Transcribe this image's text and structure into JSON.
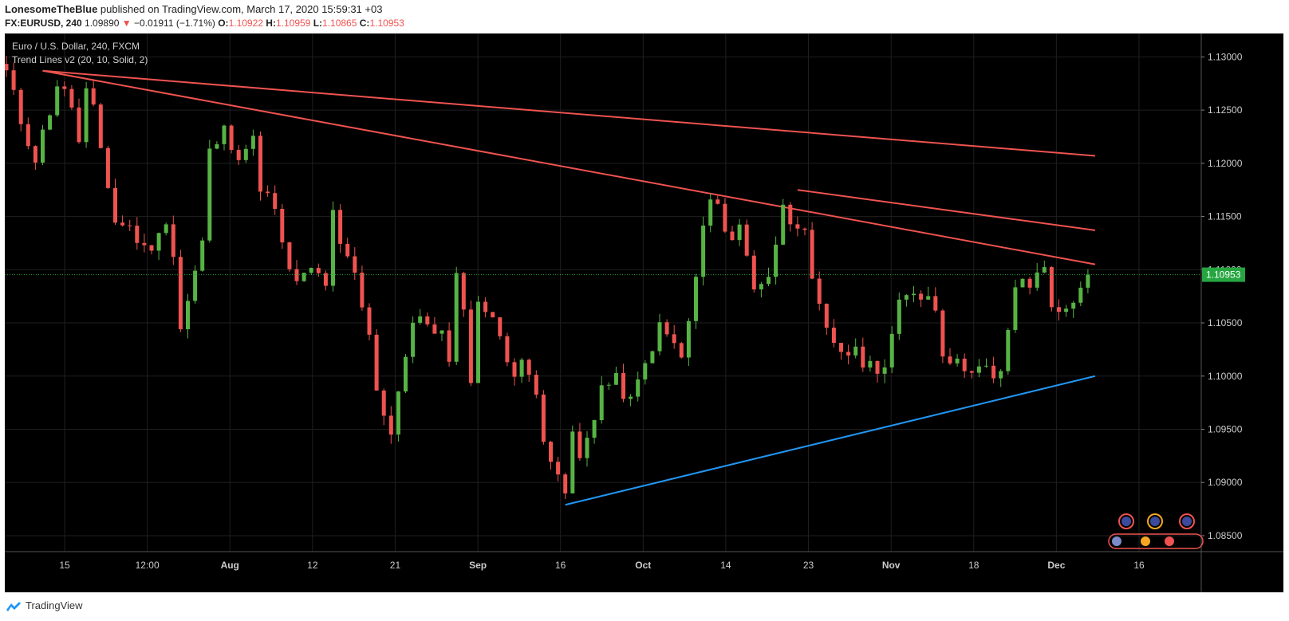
{
  "header": {
    "author": "LonesomeTheBlue",
    "published": "published on TradingView.com, March 17, 2020 15:59:31 +03",
    "symbol": "FX:EURUSD, 240",
    "price": "1.09890",
    "change_arrow": "▼",
    "change": "−0.01911 (−1.71%)",
    "o_label": "O:",
    "o_value": "1.10922",
    "h_label": "H:",
    "h_value": "1.10959",
    "l_label": "L:",
    "l_value": "1.10865",
    "c_label": "C:",
    "c_value": "1.10953"
  },
  "legend": {
    "title": "Euro / U.S. Dollar, 240, FXCM",
    "indicator": "Trend Lines v2 (20, 10, Solid, 2)"
  },
  "footer": {
    "brand": "TradingView"
  },
  "colors": {
    "up": "#56b344",
    "down": "#ef5350",
    "resistance": "#ef5350",
    "support": "#2196f3",
    "last_price": "#26a641",
    "grid": "#1f1f1f",
    "axis_text": "#cccccc"
  },
  "chart_data": {
    "type": "candlestick",
    "title": "Euro / U.S. Dollar, 240, FXCM",
    "x_axis": {
      "ticks": [
        "15",
        "12:00",
        "Aug",
        "12",
        "21",
        "Sep",
        "16",
        "Oct",
        "14",
        "23",
        "Nov",
        "18",
        "Dec",
        "16"
      ],
      "bold_ticks": [
        "Aug",
        "Sep",
        "Oct",
        "Nov",
        "Dec"
      ]
    },
    "y_axis": {
      "ticks": [
        "1.13000",
        "1.12500",
        "1.12000",
        "1.11500",
        "1.11000",
        "1.10500",
        "1.10000",
        "1.09500",
        "1.09000",
        "1.08500"
      ],
      "ylim": [
        1.0835,
        1.1322
      ]
    },
    "last_price": {
      "value": 1.10953,
      "label": "1.10953"
    },
    "price_path_anchors": [
      [
        0,
        1.1285
      ],
      [
        2,
        1.124
      ],
      [
        4,
        1.1205
      ],
      [
        6,
        1.125
      ],
      [
        7,
        1.1275
      ],
      [
        9,
        1.1255
      ],
      [
        10,
        1.1218
      ],
      [
        11,
        1.1265
      ],
      [
        12,
        1.1248
      ],
      [
        14,
        1.118
      ],
      [
        15,
        1.1145
      ],
      [
        17,
        1.114
      ],
      [
        19,
        1.1118
      ],
      [
        21,
        1.113
      ],
      [
        22,
        1.115
      ],
      [
        23,
        1.1115
      ],
      [
        24,
        1.1045
      ],
      [
        25,
        1.107
      ],
      [
        27,
        1.1125
      ],
      [
        28,
        1.121
      ],
      [
        30,
        1.123
      ],
      [
        32,
        1.121
      ],
      [
        34,
        1.122
      ],
      [
        35,
        1.118
      ],
      [
        37,
        1.1155
      ],
      [
        38,
        1.112
      ],
      [
        40,
        1.1085
      ],
      [
        42,
        1.11
      ],
      [
        44,
        1.1088
      ],
      [
        45,
        1.115
      ],
      [
        46,
        1.112
      ],
      [
        48,
        1.1095
      ],
      [
        50,
        1.1035
      ],
      [
        51,
        1.099
      ],
      [
        53,
        1.0945
      ],
      [
        54,
        1.099
      ],
      [
        56,
        1.105
      ],
      [
        58,
        1.105
      ],
      [
        60,
        1.104
      ],
      [
        61,
        1.101
      ],
      [
        62,
        1.109
      ],
      [
        63,
        1.107
      ],
      [
        64,
        1.099
      ],
      [
        65,
        1.1075
      ],
      [
        67,
        1.105
      ],
      [
        68,
        1.104
      ],
      [
        70,
        1.1
      ],
      [
        71,
        1.101
      ],
      [
        73,
        1.099
      ],
      [
        74,
        1.0945
      ],
      [
        76,
        1.09
      ],
      [
        77,
        1.089
      ],
      [
        78,
        1.0945
      ],
      [
        79,
        1.092
      ],
      [
        81,
        1.0965
      ],
      [
        82,
        1.099
      ],
      [
        84,
        1.0995
      ],
      [
        86,
        1.0975
      ],
      [
        88,
        1.101
      ],
      [
        89,
        1.103
      ],
      [
        90,
        1.1045
      ],
      [
        92,
        1.103
      ],
      [
        93,
        1.1015
      ],
      [
        95,
        1.109
      ],
      [
        96,
        1.114
      ],
      [
        97,
        1.1165
      ],
      [
        98,
        1.1155
      ],
      [
        100,
        1.113
      ],
      [
        101,
        1.114
      ],
      [
        103,
        1.1085
      ],
      [
        105,
        1.1095
      ],
      [
        106,
        1.112
      ],
      [
        107,
        1.1165
      ],
      [
        108,
        1.115
      ],
      [
        109,
        1.1145
      ],
      [
        110,
        1.113
      ],
      [
        111,
        1.1085
      ],
      [
        113,
        1.104
      ],
      [
        115,
        1.1025
      ],
      [
        117,
        1.102
      ],
      [
        119,
        1.101
      ],
      [
        121,
        1.101
      ],
      [
        123,
        1.1065
      ],
      [
        125,
        1.108
      ],
      [
        127,
        1.1075
      ],
      [
        128,
        1.1065
      ],
      [
        129,
        1.1025
      ],
      [
        131,
        1.101
      ],
      [
        133,
        1.101
      ],
      [
        135,
        1.1005
      ],
      [
        136,
        1.0995
      ],
      [
        137,
        1.1
      ],
      [
        138,
        1.1045
      ],
      [
        139,
        1.1085
      ],
      [
        141,
        1.1085
      ],
      [
        143,
        1.1105
      ],
      [
        144,
        1.107
      ],
      [
        145,
        1.1055
      ],
      [
        146,
        1.1063
      ],
      [
        148,
        1.1085
      ],
      [
        149,
        1.1095
      ]
    ],
    "trend_lines": [
      {
        "name": "resistance-long",
        "color": "#ef5350",
        "from": [
          5,
          1.1287
        ],
        "to": [
          150,
          1.1207
        ]
      },
      {
        "name": "resistance-mid",
        "color": "#ef5350",
        "from": [
          5,
          1.1287
        ],
        "to": [
          150,
          1.1105
        ]
      },
      {
        "name": "resistance-short",
        "color": "#ef5350",
        "from": [
          109,
          1.1175
        ],
        "to": [
          150,
          1.1137
        ]
      },
      {
        "name": "support",
        "color": "#2196f3",
        "from": [
          77,
          1.0879
        ],
        "to": [
          150,
          1.1
        ]
      }
    ]
  }
}
